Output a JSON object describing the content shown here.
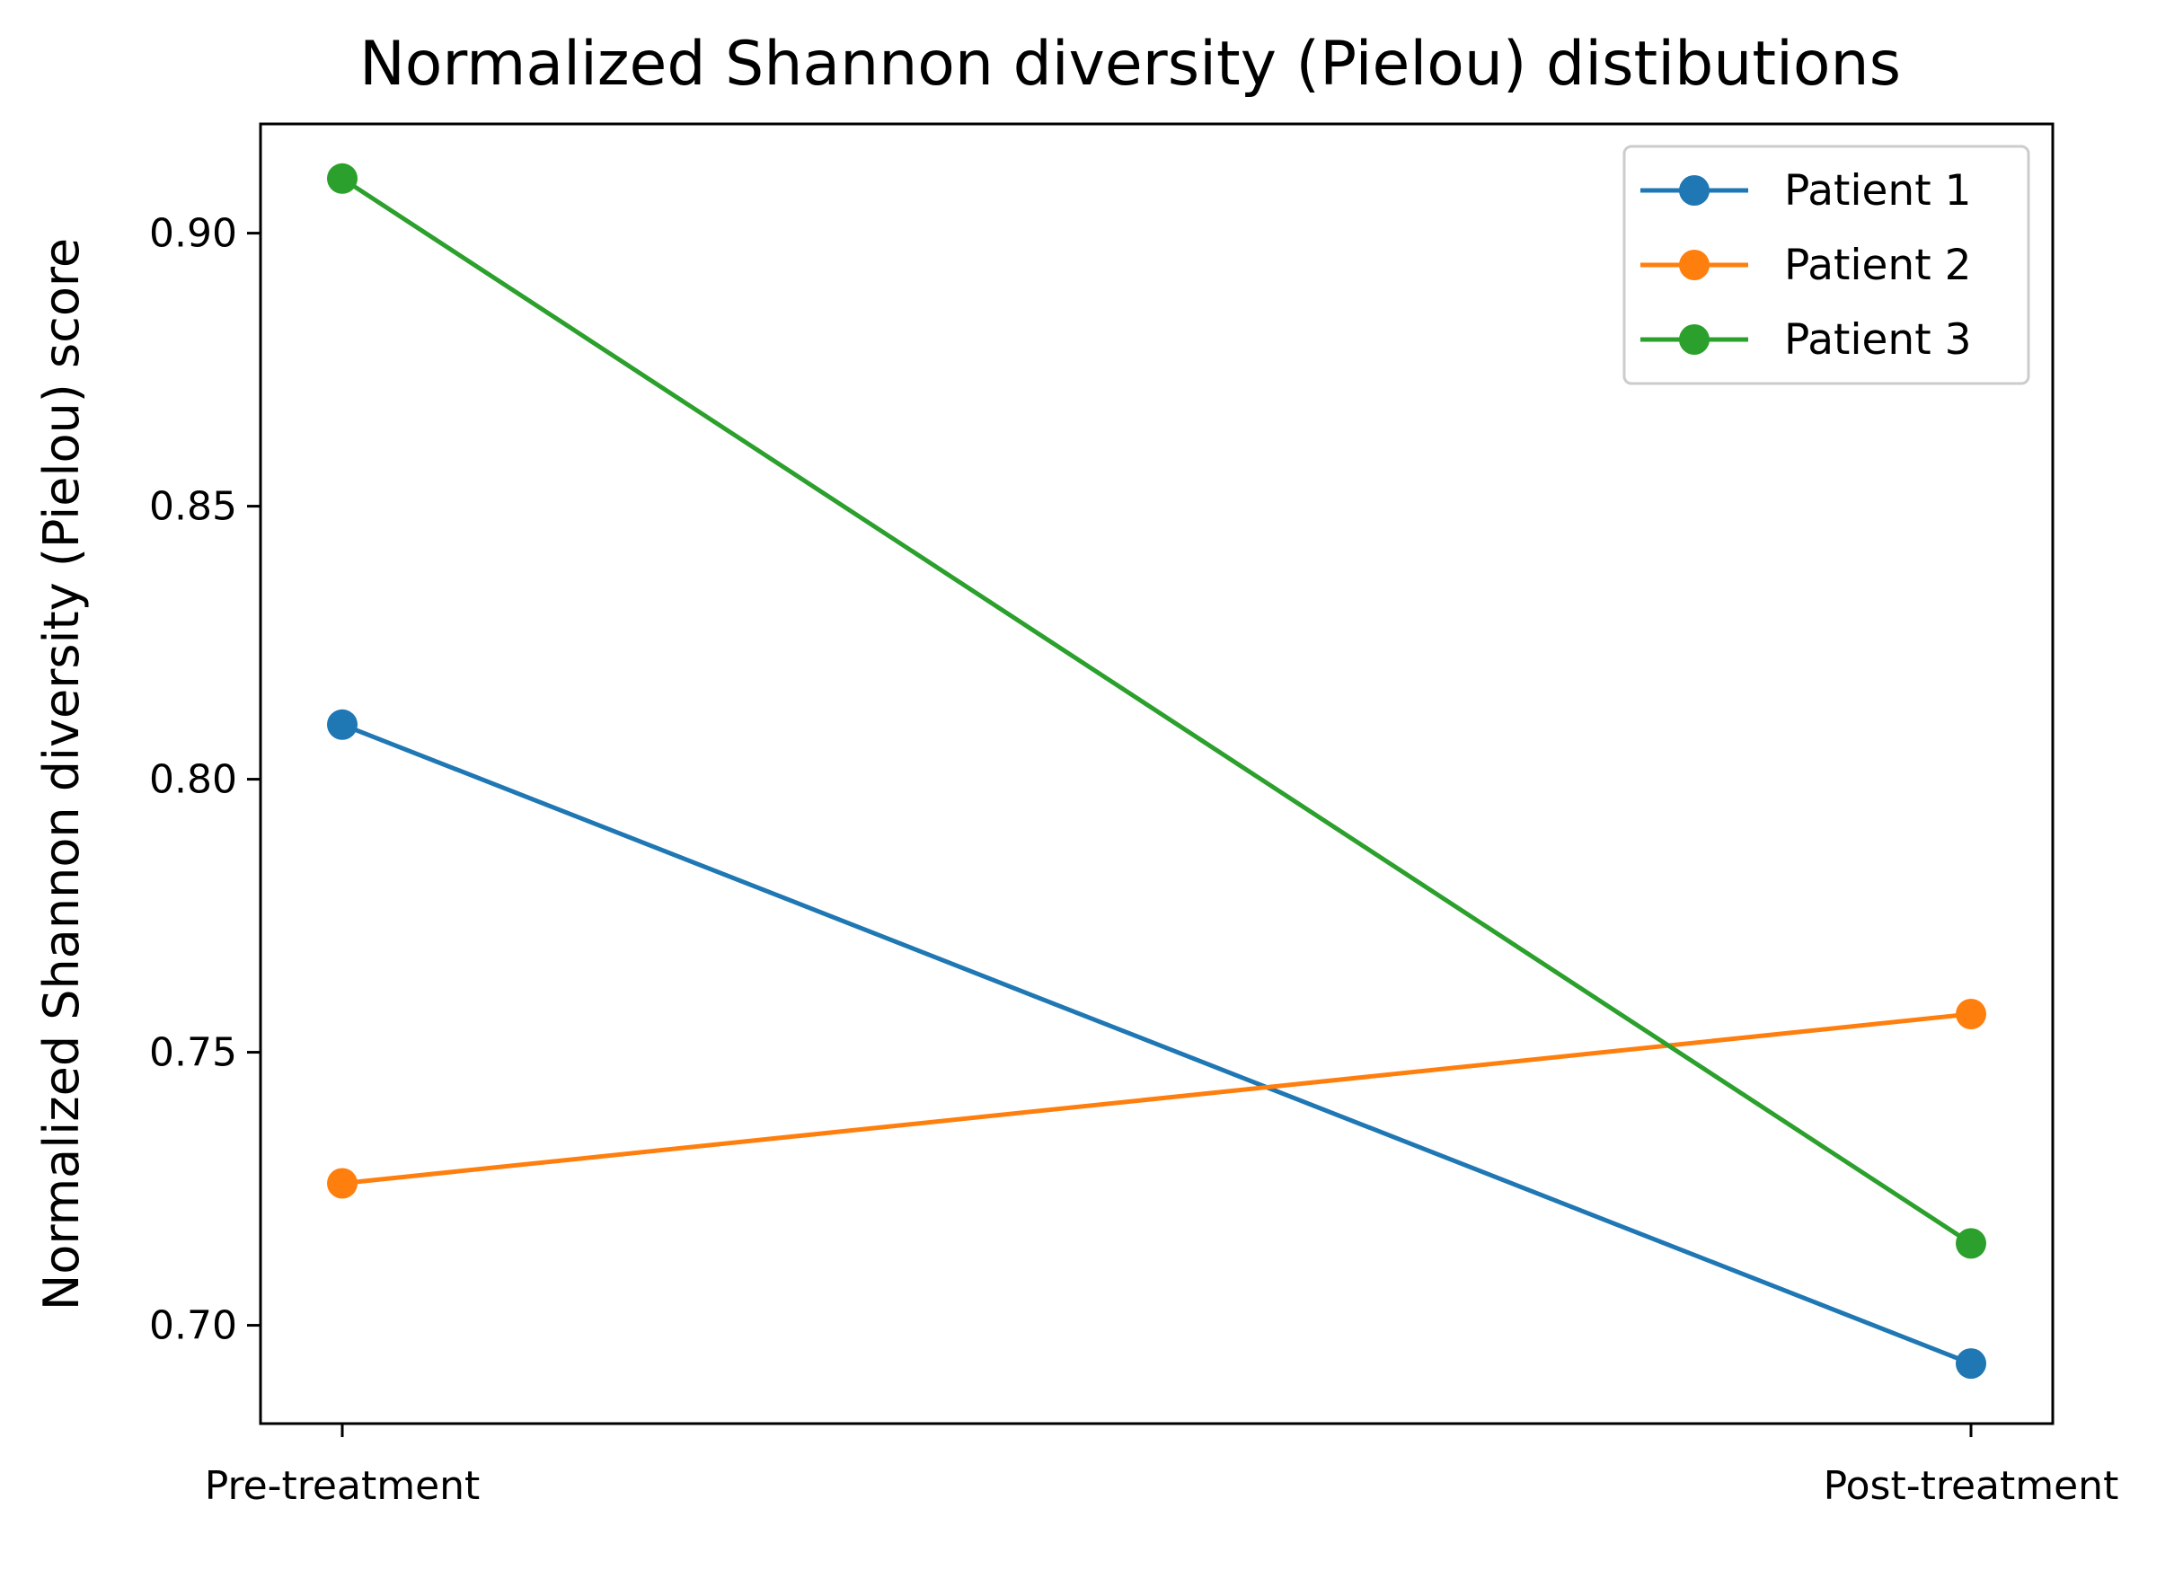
{
  "chart_data": {
    "type": "line",
    "title": "Normalized Shannon diversity (Pielou) distibutions",
    "xlabel": "",
    "ylabel": "Normalized Shannon diversity (Pielou) score",
    "categories": [
      "Pre-treatment",
      "Post-treatment"
    ],
    "ylim": [
      0.682,
      0.92
    ],
    "yticks": [
      0.7,
      0.75,
      0.8,
      0.85,
      0.9
    ],
    "ytick_labels": [
      "0.70",
      "0.75",
      "0.80",
      "0.85",
      "0.90"
    ],
    "grid": false,
    "legend": "top-right",
    "series": [
      {
        "name": "Patient 1",
        "color": "#1f77b4",
        "values": [
          0.81,
          0.693
        ]
      },
      {
        "name": "Patient 2",
        "color": "#ff7f0e",
        "values": [
          0.726,
          0.757
        ]
      },
      {
        "name": "Patient 3",
        "color": "#2ca02c",
        "values": [
          0.91,
          0.715
        ]
      }
    ]
  }
}
